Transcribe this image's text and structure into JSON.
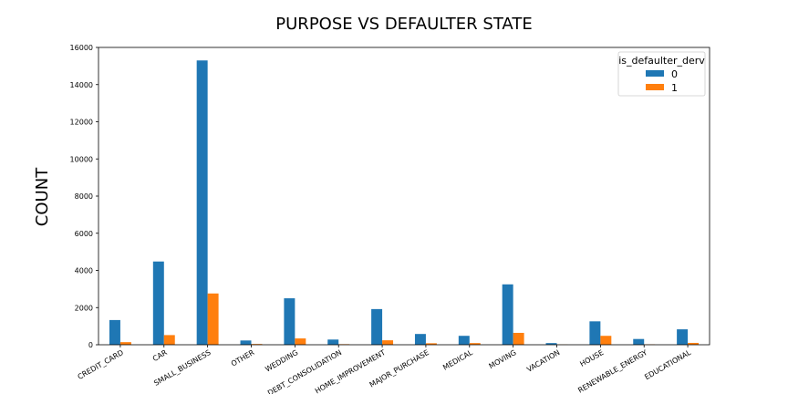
{
  "chart_data": {
    "type": "bar",
    "title": "PURPOSE VS DEFAULTER STATE",
    "xlabel": "",
    "ylabel": "COUNT",
    "ylim": [
      0,
      16000
    ],
    "yticks": [
      0,
      2000,
      4000,
      6000,
      8000,
      10000,
      12000,
      14000,
      16000
    ],
    "categories": [
      "CREDIT_CARD",
      "CAR",
      "SMALL_BUSINESS",
      "OTHER",
      "WEDDING",
      "DEBT_CONSOLIDATION",
      "HOME_IMPROVEMENT",
      "MAJOR_PURCHASE",
      "MEDICAL",
      "MOVING",
      "VACATION",
      "HOUSE",
      "RENEWABLE_ENERGY",
      "EDUCATIONAL"
    ],
    "legend_title": "is_defaulter_derv",
    "legend_position": "top-right",
    "grid": false,
    "series": [
      {
        "name": "0",
        "color": "#1f77b4",
        "values": [
          1330,
          4480,
          15300,
          230,
          2500,
          280,
          1920,
          580,
          480,
          3250,
          90,
          1260,
          310,
          830
        ]
      },
      {
        "name": "1",
        "color": "#ff7f0e",
        "values": [
          140,
          520,
          2760,
          40,
          340,
          30,
          240,
          80,
          90,
          640,
          10,
          480,
          20,
          100
        ]
      }
    ]
  }
}
